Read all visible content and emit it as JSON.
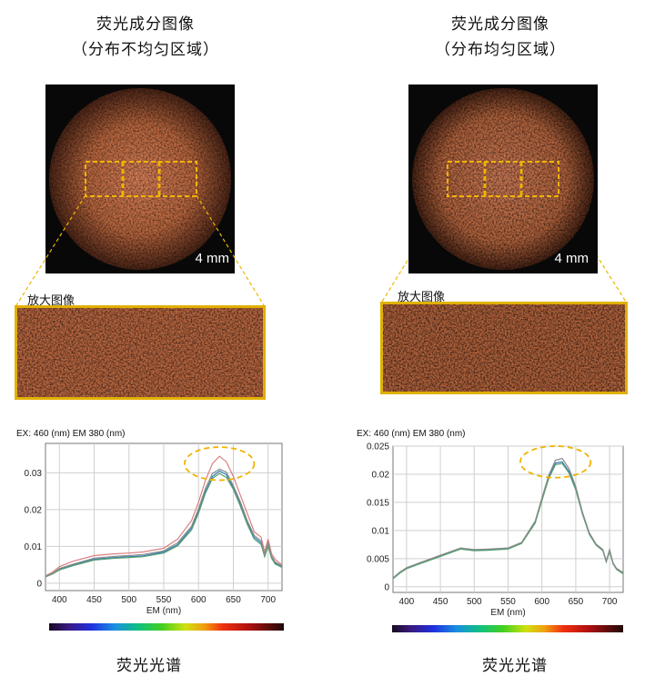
{
  "left": {
    "title_line1": "荧光成分图像",
    "title_line2": "（分布不均匀区域）",
    "scale_label": "4 mm",
    "zoom_label": "放大图像",
    "spectrum_header": "EX: 460 (nm) EM 380 (nm)",
    "spectrum_title": "荧光光谱"
  },
  "right": {
    "title_line1": "荧光成分图像",
    "title_line2": "（分布均匀区域）",
    "scale_label": "4 mm",
    "zoom_label": "放大图像",
    "spectrum_header": "EX: 460 (nm) EM 380 (nm)",
    "spectrum_title": "荧光光谱"
  },
  "colors": {
    "highlight": "#f0b400",
    "sample_center": "#c9744a",
    "sample_edge": "#5a2c1a",
    "series_red": "#d98080",
    "series_blue": "#2e7fb8",
    "series_green": "#5aa070",
    "series_gray": "#8a8a8a"
  },
  "chart_data": [
    {
      "type": "line",
      "title": "",
      "xlabel": "EM (nm)",
      "ylabel": "",
      "xlim": [
        380,
        720
      ],
      "ylim": [
        -0.002,
        0.038
      ],
      "xticks": [
        400,
        450,
        500,
        550,
        600,
        650,
        700
      ],
      "yticks": [
        0,
        0.01,
        0.02,
        0.03
      ],
      "ytick_labels": [
        "0",
        "0.01",
        "0.02",
        "0.03"
      ],
      "highlight": {
        "cx": 630,
        "cy": 0.0325,
        "rx": 50,
        "ry": 0.0045
      },
      "x": [
        380,
        390,
        400,
        420,
        450,
        480,
        500,
        520,
        550,
        570,
        590,
        600,
        610,
        620,
        630,
        640,
        650,
        660,
        670,
        680,
        690,
        695,
        700,
        705,
        710,
        720
      ],
      "series": [
        {
          "name": "red",
          "color": "#d98080",
          "values": [
            0.002,
            0.003,
            0.0045,
            0.006,
            0.0075,
            0.008,
            0.0082,
            0.0085,
            0.0095,
            0.012,
            0.017,
            0.022,
            0.028,
            0.0325,
            0.0345,
            0.033,
            0.029,
            0.024,
            0.019,
            0.014,
            0.0125,
            0.0085,
            0.012,
            0.008,
            0.0065,
            0.005
          ]
        },
        {
          "name": "blue",
          "color": "#2e7fb8",
          "values": [
            0.0018,
            0.0026,
            0.0038,
            0.005,
            0.0065,
            0.007,
            0.0072,
            0.0074,
            0.0085,
            0.0105,
            0.015,
            0.0195,
            0.025,
            0.029,
            0.0305,
            0.0295,
            0.026,
            0.0215,
            0.0165,
            0.0125,
            0.011,
            0.0075,
            0.0105,
            0.007,
            0.0055,
            0.0045
          ]
        },
        {
          "name": "green",
          "color": "#5aa070",
          "values": [
            0.0017,
            0.0025,
            0.0036,
            0.0048,
            0.0063,
            0.0068,
            0.007,
            0.0072,
            0.0082,
            0.0102,
            0.0145,
            0.019,
            0.0245,
            0.0285,
            0.0298,
            0.0288,
            0.0255,
            0.021,
            0.016,
            0.012,
            0.0105,
            0.0072,
            0.01,
            0.0068,
            0.0052,
            0.0043
          ]
        },
        {
          "name": "gray",
          "color": "#8a8a8a",
          "values": [
            0.0019,
            0.0027,
            0.004,
            0.0052,
            0.0068,
            0.0073,
            0.0075,
            0.0078,
            0.0088,
            0.011,
            0.0155,
            0.0202,
            0.0258,
            0.0298,
            0.031,
            0.0302,
            0.0265,
            0.0222,
            0.017,
            0.013,
            0.0115,
            0.0078,
            0.011,
            0.0074,
            0.0058,
            0.0047
          ]
        }
      ]
    },
    {
      "type": "line",
      "title": "",
      "xlabel": "EM (nm)",
      "ylabel": "",
      "xlim": [
        380,
        720
      ],
      "ylim": [
        -0.001,
        0.025
      ],
      "xticks": [
        400,
        450,
        500,
        550,
        600,
        650,
        700
      ],
      "yticks": [
        0,
        0.005,
        0.01,
        0.015,
        0.02,
        0.025
      ],
      "ytick_labels": [
        "0",
        "0.005",
        "0.01",
        "0.015",
        "0.02",
        "0.025"
      ],
      "highlight": {
        "cx": 620,
        "cy": 0.0222,
        "rx": 52,
        "ry": 0.0028
      },
      "x": [
        380,
        390,
        400,
        420,
        450,
        480,
        500,
        520,
        550,
        570,
        590,
        600,
        610,
        620,
        630,
        640,
        650,
        660,
        670,
        680,
        690,
        695,
        700,
        705,
        710,
        720
      ],
      "series": [
        {
          "name": "blue",
          "color": "#2e7fb8",
          "values": [
            0.0015,
            0.0025,
            0.0033,
            0.0042,
            0.0055,
            0.0068,
            0.0065,
            0.0066,
            0.0068,
            0.0078,
            0.0115,
            0.0155,
            0.0195,
            0.022,
            0.0222,
            0.0205,
            0.0175,
            0.013,
            0.0095,
            0.0075,
            0.0065,
            0.0045,
            0.0065,
            0.0042,
            0.0032,
            0.0024
          ]
        },
        {
          "name": "green",
          "color": "#5aa070",
          "values": [
            0.0014,
            0.0024,
            0.0032,
            0.0041,
            0.0054,
            0.0067,
            0.0064,
            0.0065,
            0.0067,
            0.0077,
            0.0113,
            0.0153,
            0.0192,
            0.0217,
            0.0219,
            0.0202,
            0.0172,
            0.0128,
            0.0093,
            0.0074,
            0.0064,
            0.0044,
            0.0063,
            0.0041,
            0.0031,
            0.0023
          ]
        },
        {
          "name": "gray",
          "color": "#8a8a8a",
          "values": [
            0.0016,
            0.0026,
            0.0034,
            0.0043,
            0.0056,
            0.0069,
            0.0066,
            0.0067,
            0.0069,
            0.0079,
            0.0117,
            0.0158,
            0.0198,
            0.0225,
            0.0228,
            0.021,
            0.0178,
            0.0132,
            0.0096,
            0.0076,
            0.0066,
            0.0046,
            0.0066,
            0.0043,
            0.0033,
            0.0025
          ]
        }
      ]
    }
  ]
}
